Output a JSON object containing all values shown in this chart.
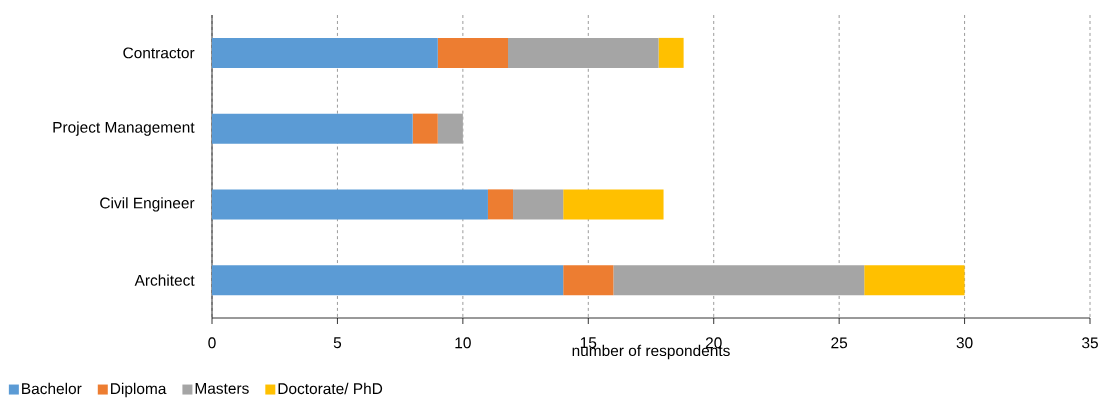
{
  "chart_data": {
    "type": "bar",
    "orientation": "horizontal",
    "stacked": true,
    "xlabel": "number of respondents",
    "categories": [
      "Contractor",
      "Project Management",
      "Civil Engineer",
      "Architect"
    ],
    "series": [
      {
        "name": "Bachelor",
        "color": "#5b9bd5",
        "values": [
          9,
          8,
          11,
          14
        ]
      },
      {
        "name": "Diploma",
        "color": "#ed7d31",
        "values": [
          2.8,
          1,
          1,
          2
        ]
      },
      {
        "name": "Masters",
        "color": "#a5a5a5",
        "values": [
          6,
          1,
          2,
          10
        ]
      },
      {
        "name": "Doctorate/ PhD",
        "color": "#ffc000",
        "values": [
          1,
          0,
          4,
          4
        ]
      }
    ],
    "xlim": [
      0,
      35
    ],
    "xticks": [
      0,
      5,
      10,
      15,
      20,
      25,
      30,
      35
    ],
    "grid": "x",
    "legend": "bottom left"
  }
}
